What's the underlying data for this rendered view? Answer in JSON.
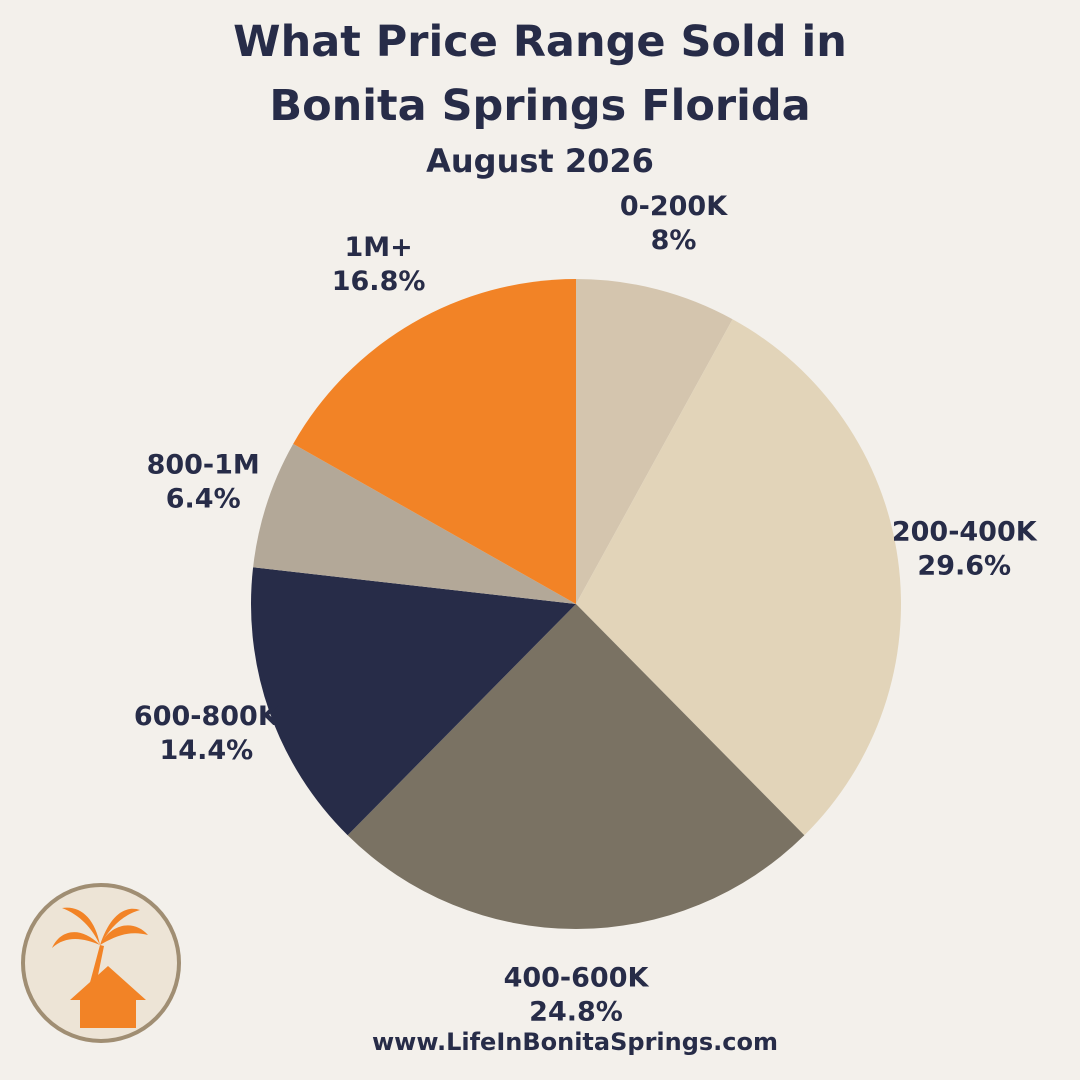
{
  "chart_data": {
    "type": "pie",
    "title": "What Price Range Sold in Bonita Springs Florida",
    "subtitle": "August 2026",
    "categories": [
      "0-200K",
      "200-400K",
      "400-600K",
      "600-800K",
      "800-1M",
      "1M+"
    ],
    "values": [
      8,
      29.6,
      24.8,
      14.4,
      6.4,
      16.8
    ],
    "value_labels": [
      "8%",
      "29.6%",
      "24.8%",
      "14.4%",
      "6.4%",
      "16.8%"
    ],
    "colors": [
      "#d4c5ae",
      "#e2d4b9",
      "#7a7263",
      "#272c48",
      "#b3a898",
      "#f28326"
    ]
  },
  "footer": "www.LifeInBonitaSprings.com"
}
